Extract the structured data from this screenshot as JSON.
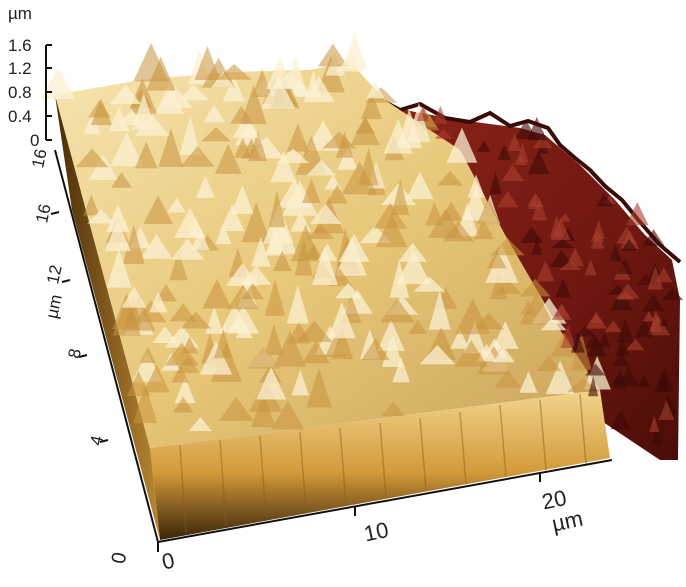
{
  "z_axis": {
    "unit": "µm",
    "ticks": [
      "1.6",
      "1.2",
      "0.8",
      "0.4",
      "0"
    ]
  },
  "y_axis": {
    "unit": "µm",
    "ticks": [
      "16",
      "12",
      "8",
      "4",
      "0"
    ]
  },
  "x_axis": {
    "unit": "µm",
    "ticks": [
      "0",
      "10",
      "20"
    ]
  },
  "colors": {
    "high_region": "#e8c87a",
    "low_region": "#7a1a14",
    "shadow": "#3a1f0a"
  }
}
